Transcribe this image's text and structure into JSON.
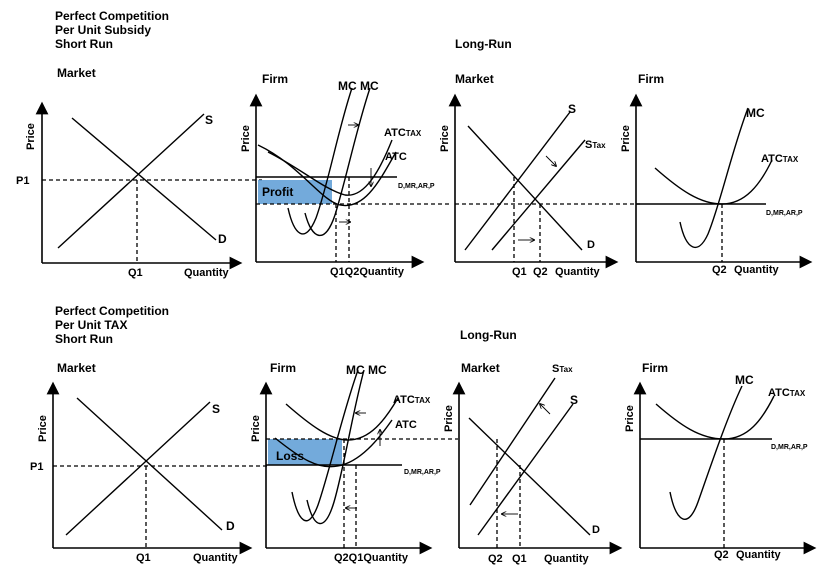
{
  "subsidy": {
    "title1": "Perfect Competition",
    "title2": "Per Unit Subsidy",
    "title3": "Short Run",
    "long_run": "Long-Run",
    "market": {
      "heading": "Market",
      "price": "Price",
      "p1": "P1",
      "s": "S",
      "d": "D",
      "q1": "Q1",
      "quantity": "Quantity"
    },
    "firm": {
      "heading": "Firm",
      "price": "Price",
      "mc": "MC MC",
      "atc_tax": "ATC",
      "tax_sub": "TAX",
      "atc": "ATC",
      "dmr": "D,MR,AR,P",
      "profit": "Profit",
      "q1q2": "Q1Q2Quantity"
    },
    "lr_market": {
      "heading": "Market",
      "price": "Price",
      "s": "S",
      "s_tax": "S",
      "tax_sub": "Tax",
      "d": "D",
      "q1": "Q1",
      "q2": "Q2",
      "quantity": "Quantity"
    },
    "lr_firm": {
      "heading": "Firm",
      "price": "Price",
      "mc": "MC",
      "atc_tax": "ATC",
      "tax_sub": "TAX",
      "dmr": "D,MR,AR,P",
      "q2": "Q2",
      "quantity": "Quantity"
    }
  },
  "tax": {
    "title1": "Perfect Competition",
    "title2": "Per Unit TAX",
    "title3": "Short Run",
    "long_run": "Long-Run",
    "market": {
      "heading": "Market",
      "price": "Price",
      "p1": "P1",
      "s": "S",
      "d": "D",
      "q1": "Q1",
      "quantity": "Quantity"
    },
    "firm": {
      "heading": "Firm",
      "price": "Price",
      "mc": "MC MC",
      "atc_tax": "ATC",
      "tax_sub": "TAX",
      "atc": "ATC",
      "dmr": "D,MR,AR,P",
      "loss": "Loss",
      "q2q1": "Q2Q1Quantity"
    },
    "lr_market": {
      "heading": "Market",
      "price": "Price",
      "s_tax": "S",
      "tax_sub": "Tax",
      "s": "S",
      "d": "D",
      "q2": "Q2",
      "q1": "Q1",
      "quantity": "Quantity"
    },
    "lr_firm": {
      "heading": "Firm",
      "price": "Price",
      "mc": "MC",
      "atc_tax": "ATC",
      "tax_sub": "TAX",
      "dmr": "D,MR,AR,P",
      "q2": "Q2",
      "quantity": "Quantity"
    }
  },
  "colors": {
    "shade": "#5b9bd5"
  }
}
